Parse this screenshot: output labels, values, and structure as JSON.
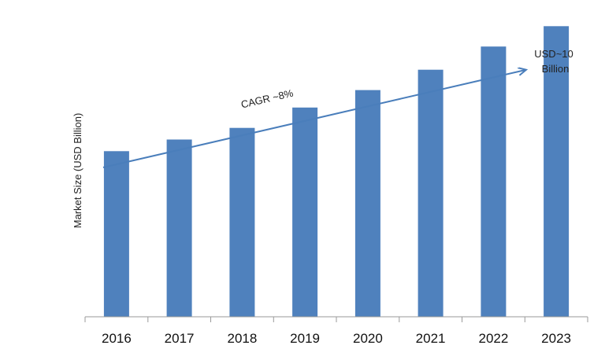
{
  "chart_data": {
    "type": "bar",
    "categories": [
      "2016",
      "2017",
      "2018",
      "2019",
      "2020",
      "2021",
      "2022",
      "2023"
    ],
    "values": [
      5.7,
      6.1,
      6.5,
      7.2,
      7.8,
      8.5,
      9.3,
      10.0
    ],
    "ylabel": "Market Size (USD Billion)",
    "ylim": [
      0,
      10.9
    ],
    "bar_color": "#4f81bd",
    "grid": false,
    "annotations": {
      "cagr_label": "CAGR ~8%",
      "end_value_label_line1": "USD~10",
      "end_value_label_line2": "Billion"
    },
    "trend_arrow_color": "#4a7ebb"
  }
}
